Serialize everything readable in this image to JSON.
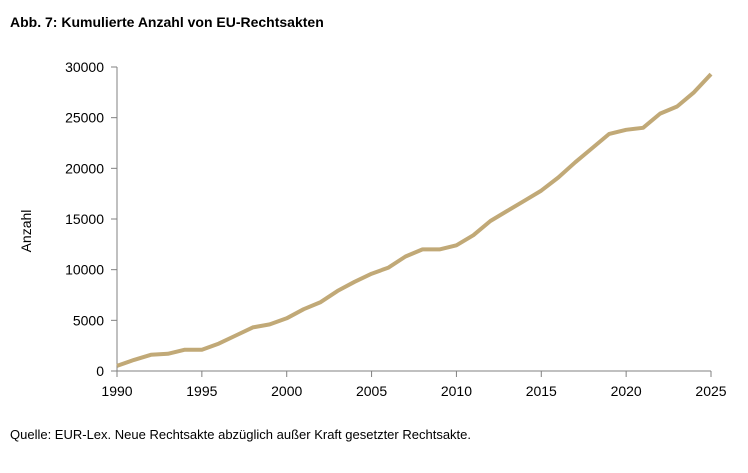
{
  "title": "Abb. 7: Kumulierte Anzahl von EU-Rechtsakten",
  "source_note": "Quelle: EUR-Lex. Neue Rechtsakte abzüglich außer Kraft gesetzter Rechtsakte.",
  "colors": {
    "line": "#C1A977",
    "axis": "#808080",
    "text": "#000000"
  },
  "chart_data": {
    "type": "line",
    "title": "Abb. 7: Kumulierte Anzahl von EU-Rechtsakten",
    "xlabel": "",
    "ylabel": "Anzahl",
    "xlim": [
      1990,
      2025
    ],
    "ylim": [
      0,
      30000
    ],
    "grid": false,
    "legend": "none",
    "x_ticks": [
      "1990",
      "1995",
      "2000",
      "2005",
      "2010",
      "2015",
      "2020",
      "2025"
    ],
    "y_ticks": [
      "0",
      "5000",
      "10000",
      "15000",
      "20000",
      "25000",
      "30000"
    ],
    "x": [
      1990,
      1991,
      1992,
      1993,
      1994,
      1995,
      1996,
      1997,
      1998,
      1999,
      2000,
      2001,
      2002,
      2003,
      2004,
      2005,
      2006,
      2007,
      2008,
      2009,
      2010,
      2011,
      2012,
      2013,
      2014,
      2015,
      2016,
      2017,
      2018,
      2019,
      2020,
      2021,
      2022,
      2023,
      2024,
      2025
    ],
    "series": [
      {
        "values": [
          500,
          1100,
          1600,
          1700,
          2100,
          2100,
          2700,
          3500,
          4300,
          4600,
          5200,
          6100,
          6800,
          7900,
          8800,
          9600,
          10200,
          11300,
          12000,
          12000,
          12400,
          13400,
          14800,
          15800,
          16800,
          17800,
          19100,
          20600,
          22000,
          23400,
          23800,
          24000,
          25400,
          26100,
          27500,
          29300
        ]
      }
    ]
  }
}
